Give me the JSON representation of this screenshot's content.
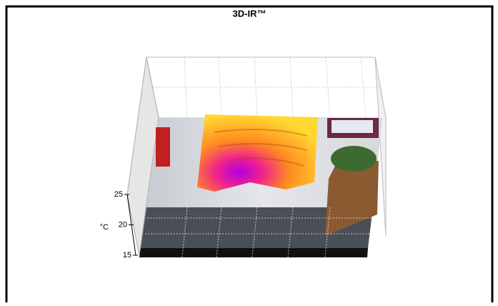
{
  "chart_data": {
    "type": "surface3d",
    "title": "3D-IR™",
    "zlabel": "°C",
    "zlim": [
      15,
      25
    ],
    "zticks": [
      15,
      20,
      25
    ]
  }
}
